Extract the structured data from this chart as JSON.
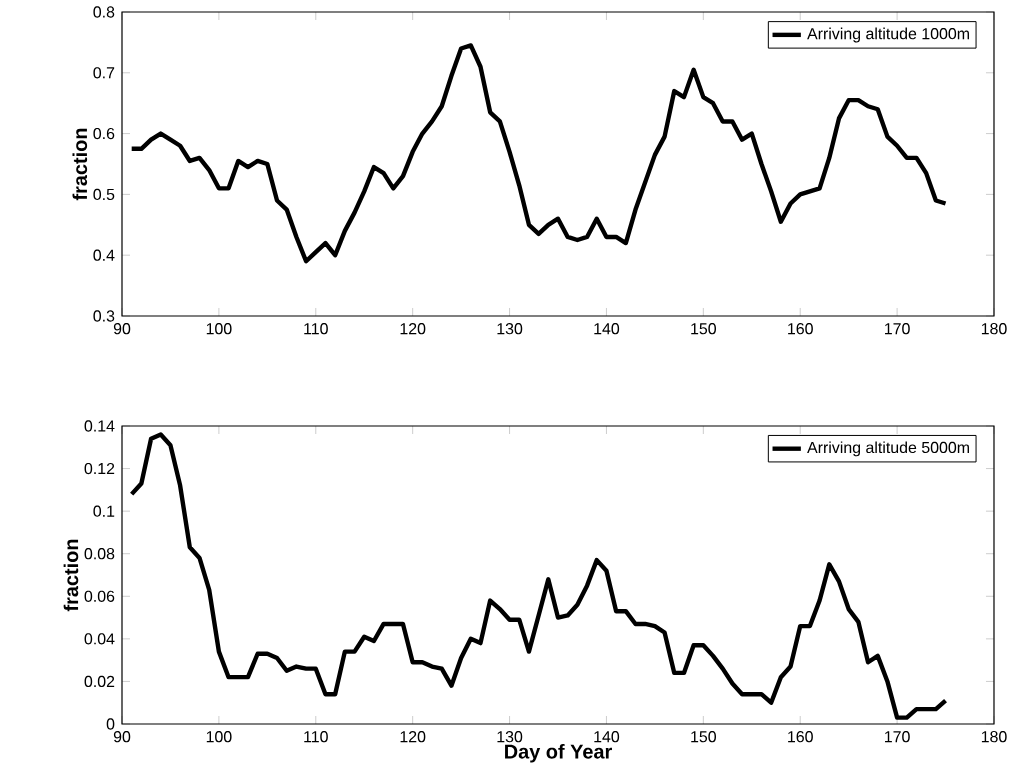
{
  "chart_data": [
    {
      "type": "line",
      "ylabel": "fraction",
      "legend": "top right",
      "xlim": [
        90,
        180
      ],
      "xticks": [
        90,
        100,
        110,
        120,
        130,
        140,
        150,
        160,
        170,
        180
      ],
      "ylim": [
        0.3,
        0.8
      ],
      "yticks": [
        0.3,
        0.4,
        0.5,
        0.6,
        0.7,
        0.8
      ],
      "x": [
        91,
        92,
        93,
        94,
        95,
        96,
        97,
        98,
        99,
        100,
        101,
        102,
        103,
        104,
        105,
        106,
        107,
        108,
        109,
        110,
        111,
        112,
        113,
        114,
        115,
        116,
        117,
        118,
        119,
        120,
        121,
        122,
        123,
        124,
        125,
        126,
        127,
        128,
        129,
        130,
        131,
        132,
        133,
        134,
        135,
        136,
        137,
        138,
        139,
        140,
        141,
        142,
        143,
        144,
        145,
        146,
        147,
        148,
        149,
        150,
        151,
        152,
        153,
        154,
        155,
        156,
        157,
        158,
        159,
        160,
        161,
        162,
        163,
        164,
        165,
        166,
        167,
        168,
        169,
        170,
        171,
        172,
        173,
        174,
        175
      ],
      "series": [
        {
          "name": "Arriving altitude 1000m",
          "color": "#000000",
          "values": [
            0.575,
            0.575,
            0.59,
            0.6,
            0.59,
            0.58,
            0.555,
            0.56,
            0.54,
            0.51,
            0.51,
            0.555,
            0.545,
            0.555,
            0.55,
            0.49,
            0.475,
            0.43,
            0.39,
            0.405,
            0.42,
            0.4,
            0.44,
            0.47,
            0.505,
            0.545,
            0.535,
            0.51,
            0.53,
            0.57,
            0.6,
            0.62,
            0.645,
            0.695,
            0.74,
            0.745,
            0.71,
            0.635,
            0.62,
            0.57,
            0.515,
            0.45,
            0.435,
            0.45,
            0.46,
            0.43,
            0.425,
            0.43,
            0.46,
            0.43,
            0.43,
            0.42,
            0.475,
            0.52,
            0.565,
            0.595,
            0.67,
            0.66,
            0.705,
            0.66,
            0.65,
            0.62,
            0.62,
            0.59,
            0.6,
            0.55,
            0.505,
            0.455,
            0.485,
            0.5,
            0.505,
            0.51,
            0.56,
            0.625,
            0.655,
            0.655,
            0.645,
            0.64,
            0.595,
            0.58,
            0.56,
            0.56,
            0.535,
            0.49,
            0.485
          ]
        }
      ]
    },
    {
      "type": "line",
      "ylabel": "fraction",
      "xlabel": "Day of Year",
      "legend": "top right",
      "xlim": [
        90,
        180
      ],
      "xticks": [
        90,
        100,
        110,
        120,
        130,
        140,
        150,
        160,
        170,
        180
      ],
      "ylim": [
        0,
        0.14
      ],
      "yticks": [
        0,
        0.02,
        0.04,
        0.06,
        0.08,
        0.1,
        0.12,
        0.14
      ],
      "x": [
        91,
        92,
        93,
        94,
        95,
        96,
        97,
        98,
        99,
        100,
        101,
        102,
        103,
        104,
        105,
        106,
        107,
        108,
        109,
        110,
        111,
        112,
        113,
        114,
        115,
        116,
        117,
        118,
        119,
        120,
        121,
        122,
        123,
        124,
        125,
        126,
        127,
        128,
        129,
        130,
        131,
        132,
        133,
        134,
        135,
        136,
        137,
        138,
        139,
        140,
        141,
        142,
        143,
        144,
        145,
        146,
        147,
        148,
        149,
        150,
        151,
        152,
        153,
        154,
        155,
        156,
        157,
        158,
        159,
        160,
        161,
        162,
        163,
        164,
        165,
        166,
        167,
        168,
        169,
        170,
        171,
        172,
        173,
        174,
        175
      ],
      "series": [
        {
          "name": "Arriving altitude 5000m",
          "color": "#000000",
          "values": [
            0.108,
            0.113,
            0.134,
            0.136,
            0.131,
            0.112,
            0.083,
            0.078,
            0.063,
            0.034,
            0.022,
            0.022,
            0.022,
            0.033,
            0.033,
            0.031,
            0.025,
            0.027,
            0.026,
            0.026,
            0.014,
            0.014,
            0.034,
            0.034,
            0.041,
            0.039,
            0.047,
            0.047,
            0.047,
            0.029,
            0.029,
            0.027,
            0.026,
            0.018,
            0.031,
            0.04,
            0.038,
            0.058,
            0.054,
            0.049,
            0.049,
            0.034,
            0.051,
            0.068,
            0.05,
            0.051,
            0.056,
            0.065,
            0.077,
            0.072,
            0.053,
            0.053,
            0.047,
            0.047,
            0.046,
            0.043,
            0.024,
            0.024,
            0.037,
            0.037,
            0.032,
            0.026,
            0.019,
            0.014,
            0.014,
            0.014,
            0.01,
            0.022,
            0.027,
            0.046,
            0.046,
            0.058,
            0.075,
            0.067,
            0.054,
            0.048,
            0.029,
            0.032,
            0.02,
            0.003,
            0.003,
            0.007,
            0.007,
            0.007,
            0.011
          ]
        }
      ]
    }
  ]
}
